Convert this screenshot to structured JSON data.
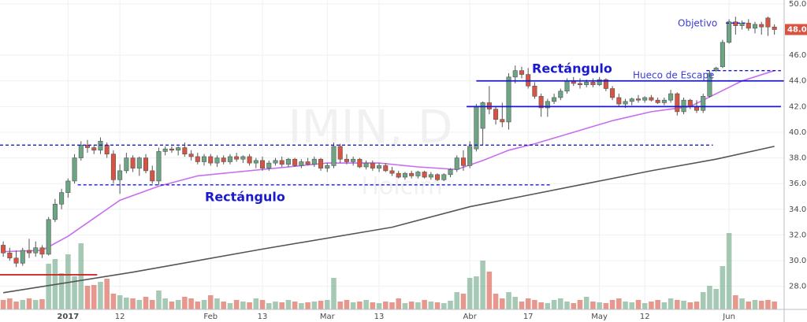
{
  "chart_data": {
    "type": "candlestick",
    "watermark": [
      "IMIN, D",
      "Holcim"
    ],
    "xlim": [
      -0.5,
      120.5
    ],
    "ylim": [
      26.2,
      50.3
    ],
    "yticks": [
      {
        "value": 28,
        "label": "28.00"
      },
      {
        "value": 30,
        "label": "30.00"
      },
      {
        "value": 32,
        "label": "32.00"
      },
      {
        "value": 34,
        "label": "34.00"
      },
      {
        "value": 36,
        "label": "36.00"
      },
      {
        "value": 38,
        "label": "38.00"
      },
      {
        "value": 40,
        "label": "40.00"
      },
      {
        "value": 42,
        "label": "42.00"
      },
      {
        "value": 44,
        "label": "44.00"
      },
      {
        "value": 46,
        "label": "46.00"
      },
      {
        "value": 50,
        "label": "50.00"
      }
    ],
    "xticks": [
      {
        "value": 10,
        "label": "2017"
      },
      {
        "value": 18,
        "label": "12"
      },
      {
        "value": 32,
        "label": "Feb"
      },
      {
        "value": 40,
        "label": "13"
      },
      {
        "value": 50,
        "label": "Mar"
      },
      {
        "value": 58,
        "label": "13"
      },
      {
        "value": 72,
        "label": "Abr"
      },
      {
        "value": 81,
        "label": "17"
      },
      {
        "value": 92,
        "label": "May"
      },
      {
        "value": 99,
        "label": "12"
      },
      {
        "value": 112,
        "label": "Jun"
      }
    ],
    "grid": true,
    "up_color": "#6ba583",
    "down_color": "#d75442",
    "last_price": {
      "value": 48.0,
      "label": "48.00"
    },
    "candles": [
      [
        31.2,
        31.5,
        30.3,
        30.6
      ],
      [
        30.6,
        31,
        30.0,
        30.2
      ],
      [
        30.2,
        30.8,
        29.5,
        29.8
      ],
      [
        29.8,
        31,
        29.6,
        30.8
      ],
      [
        30.8,
        31.7,
        30.2,
        30.6
      ],
      [
        30.6,
        31.5,
        30.3,
        31.0
      ],
      [
        31.0,
        31.2,
        30.2,
        30.5
      ],
      [
        30.5,
        33.4,
        30.4,
        33.2
      ],
      [
        33.2,
        34.8,
        33.0,
        34.4
      ],
      [
        34.4,
        35.6,
        34.0,
        35.3
      ],
      [
        35.3,
        36.4,
        34.9,
        36.2
      ],
      [
        36.2,
        38.3,
        36.0,
        38.0
      ],
      [
        38.0,
        39.3,
        37.8,
        39.0
      ],
      [
        39.0,
        39.4,
        38.4,
        38.8
      ],
      [
        38.8,
        39.0,
        38.3,
        38.6
      ],
      [
        38.6,
        39.6,
        38.3,
        39.3
      ],
      [
        39.0,
        39.2,
        38.0,
        38.3
      ],
      [
        38.3,
        38.6,
        36.0,
        36.3
      ],
      [
        36.3,
        37.5,
        35.2,
        37.0
      ],
      [
        37.0,
        38.4,
        36.8,
        38.0
      ],
      [
        38.0,
        38.2,
        36.9,
        37.2
      ],
      [
        37.2,
        38.1,
        36.6,
        38.0
      ],
      [
        38.0,
        38.3,
        36.8,
        37.0
      ],
      [
        37.0,
        37.4,
        36.0,
        36.2
      ],
      [
        36.2,
        38.8,
        35.9,
        38.5
      ],
      [
        38.5,
        38.9,
        38.2,
        38.7
      ],
      [
        38.7,
        38.9,
        38.4,
        38.6
      ],
      [
        38.6,
        38.9,
        38.2,
        38.8
      ],
      [
        38.8,
        39.2,
        38.1,
        38.3
      ],
      [
        38.3,
        38.6,
        37.8,
        38.1
      ],
      [
        38.1,
        38.4,
        37.5,
        37.7
      ],
      [
        37.7,
        38.3,
        37.4,
        38.1
      ],
      [
        38.1,
        38.3,
        37.4,
        37.6
      ],
      [
        37.6,
        38.2,
        37.3,
        38.0
      ],
      [
        38.0,
        38.2,
        37.5,
        37.7
      ],
      [
        37.7,
        38.3,
        37.5,
        38.1
      ],
      [
        38.1,
        38.4,
        37.7,
        37.9
      ],
      [
        37.9,
        38.2,
        37.6,
        38.1
      ],
      [
        38.1,
        38.3,
        37.4,
        37.6
      ],
      [
        37.6,
        38.0,
        37.2,
        37.8
      ],
      [
        37.8,
        38.1,
        37.0,
        37.2
      ],
      [
        37.2,
        37.8,
        37.0,
        37.6
      ],
      [
        37.6,
        38.0,
        37.4,
        37.8
      ],
      [
        37.8,
        38.1,
        37.3,
        37.5
      ],
      [
        37.5,
        38.0,
        37.3,
        37.9
      ],
      [
        37.9,
        38.0,
        37.3,
        37.4
      ],
      [
        37.4,
        37.9,
        37.2,
        37.7
      ],
      [
        37.7,
        38.0,
        37.4,
        37.5
      ],
      [
        37.5,
        38.1,
        37.3,
        37.9
      ],
      [
        37.9,
        38.0,
        37.0,
        37.2
      ],
      [
        37.2,
        37.6,
        36.9,
        37.4
      ],
      [
        37.4,
        39.2,
        37.2,
        38.9
      ],
      [
        38.9,
        39.1,
        37.6,
        37.9
      ],
      [
        37.9,
        38.3,
        37.5,
        37.7
      ],
      [
        37.7,
        38.1,
        37.4,
        37.9
      ],
      [
        37.9,
        38.0,
        37.2,
        37.3
      ],
      [
        37.3,
        37.8,
        37.1,
        37.6
      ],
      [
        37.6,
        37.8,
        37.0,
        37.2
      ],
      [
        37.2,
        37.6,
        36.9,
        37.4
      ],
      [
        37.4,
        37.6,
        36.9,
        37.0
      ],
      [
        37.0,
        37.3,
        36.6,
        36.8
      ],
      [
        36.8,
        37.0,
        36.4,
        36.5
      ],
      [
        36.5,
        36.9,
        36.3,
        36.8
      ],
      [
        36.8,
        37.0,
        36.4,
        36.6
      ],
      [
        36.6,
        37.0,
        36.4,
        36.9
      ],
      [
        36.9,
        37.0,
        36.4,
        36.5
      ],
      [
        36.5,
        36.9,
        36.3,
        36.7
      ],
      [
        36.7,
        36.8,
        36.2,
        36.3
      ],
      [
        36.3,
        36.8,
        36.2,
        36.7
      ],
      [
        36.7,
        37.2,
        36.5,
        37.1
      ],
      [
        37.1,
        38.2,
        36.9,
        38.0
      ],
      [
        38.0,
        38.6,
        37.0,
        37.4
      ],
      [
        37.4,
        39.3,
        37.2,
        38.9
      ],
      [
        38.7,
        42.2,
        38.5,
        42.0
      ],
      [
        40.3,
        42.4,
        39.0,
        42.3
      ],
      [
        42.3,
        43.6,
        41.4,
        41.8
      ],
      [
        41.8,
        42.0,
        40.6,
        41.0
      ],
      [
        41.0,
        42.3,
        40.4,
        40.8
      ],
      [
        40.8,
        44.6,
        40.2,
        44.3
      ],
      [
        44.3,
        45.2,
        43.8,
        44.8
      ],
      [
        44.8,
        45.1,
        44.2,
        44.5
      ],
      [
        44.5,
        45.0,
        43.4,
        43.6
      ],
      [
        43.6,
        43.9,
        42.6,
        42.8
      ],
      [
        42.8,
        43.0,
        41.2,
        41.9
      ],
      [
        41.9,
        42.6,
        41.2,
        42.4
      ],
      [
        42.4,
        43.0,
        42.2,
        42.7
      ],
      [
        42.7,
        43.4,
        42.5,
        43.2
      ],
      [
        43.2,
        44.2,
        43.0,
        44.0
      ],
      [
        44.0,
        44.3,
        43.6,
        43.8
      ],
      [
        43.8,
        44.2,
        43.4,
        43.7
      ],
      [
        43.7,
        44.1,
        43.5,
        43.9
      ],
      [
        43.9,
        44.2,
        43.5,
        43.7
      ],
      [
        43.7,
        44.3,
        43.6,
        44.1
      ],
      [
        44.1,
        44.2,
        43.2,
        43.4
      ],
      [
        43.4,
        43.6,
        42.5,
        42.7
      ],
      [
        42.7,
        43.0,
        42.0,
        42.2
      ],
      [
        42.2,
        42.6,
        41.9,
        42.4
      ],
      [
        42.4,
        42.7,
        42.1,
        42.6
      ],
      [
        42.6,
        42.9,
        42.3,
        42.5
      ],
      [
        42.5,
        42.8,
        42.3,
        42.7
      ],
      [
        42.7,
        42.9,
        42.4,
        42.5
      ],
      [
        42.5,
        42.7,
        42.2,
        42.3
      ],
      [
        42.3,
        42.7,
        42.1,
        42.5
      ],
      [
        42.5,
        43.3,
        42.3,
        43.0
      ],
      [
        43.0,
        43.1,
        41.3,
        41.6
      ],
      [
        41.6,
        42.7,
        41.4,
        42.5
      ],
      [
        42.5,
        42.6,
        41.8,
        42.0
      ],
      [
        42.0,
        42.5,
        41.5,
        41.7
      ],
      [
        41.7,
        43.0,
        41.5,
        42.8
      ],
      [
        42.8,
        44.8,
        42.7,
        44.6
      ],
      [
        44.8,
        45.1,
        44.7,
        45.0
      ],
      [
        45.1,
        47.2,
        45.0,
        47.0
      ],
      [
        47.0,
        48.8,
        46.9,
        48.6
      ],
      [
        48.6,
        49.0,
        47.6,
        48.3
      ],
      [
        48.3,
        48.7,
        48.0,
        48.5
      ],
      [
        48.5,
        48.8,
        47.9,
        48.1
      ],
      [
        48.1,
        48.6,
        47.7,
        48.4
      ],
      [
        48.4,
        48.6,
        47.6,
        48.2
      ],
      [
        48.9,
        49.0,
        47.5,
        48.2
      ],
      [
        48.2,
        48.4,
        47.6,
        48.0
      ]
    ],
    "vlim": [
      0,
      120
    ],
    "volume": [
      12,
      14,
      10,
      12,
      14,
      12,
      13,
      58,
      64,
      46,
      70,
      42,
      84,
      30,
      31,
      35,
      39,
      20,
      18,
      15,
      14,
      12,
      16,
      12,
      24,
      14,
      10,
      12,
      16,
      14,
      10,
      12,
      18,
      14,
      10,
      8,
      12,
      10,
      9,
      14,
      12,
      8,
      10,
      9,
      12,
      10,
      8,
      9,
      10,
      11,
      12,
      40,
      10,
      12,
      9,
      10,
      12,
      9,
      8,
      10,
      9,
      14,
      8,
      10,
      9,
      12,
      10,
      9,
      8,
      11,
      22,
      20,
      40,
      42,
      62,
      48,
      20,
      14,
      22,
      16,
      10,
      14,
      12,
      9,
      8,
      12,
      14,
      10,
      8,
      12,
      16,
      10,
      9,
      8,
      12,
      14,
      10,
      9,
      12,
      8,
      10,
      12,
      9,
      14,
      12,
      11,
      9,
      10,
      22,
      30,
      26,
      55,
      97,
      18,
      14,
      10,
      12,
      11,
      12,
      10
    ],
    "series": [
      {
        "color": "#c86cf0",
        "x": [
          0,
          6,
          10,
          18,
          24,
          30,
          40,
          50,
          58,
          64,
          70,
          74,
          78,
          82,
          88,
          94,
          100,
          106,
          110,
          114,
          119
        ],
        "values": [
          30.7,
          30.8,
          31.9,
          34.7,
          35.8,
          36.6,
          37.1,
          37.6,
          37.6,
          37.3,
          37.1,
          37.8,
          38.6,
          39.1,
          40.0,
          40.9,
          41.6,
          42.0,
          43.0,
          44.0,
          44.8
        ]
      },
      {
        "color": "#555555",
        "x": [
          0,
          20,
          40,
          60,
          72,
          80,
          90,
          100,
          110,
          119
        ],
        "values": [
          27.5,
          29.1,
          30.9,
          32.6,
          34.2,
          35.0,
          36.0,
          37.0,
          37.9,
          38.9
        ]
      }
    ],
    "levels": [
      {
        "value": 39.0,
        "from": -0.5,
        "to": 109.5,
        "color": "#1a1acc",
        "dashed": true
      },
      {
        "value": 35.9,
        "from": 11.5,
        "to": 84.5,
        "color": "#1a1acc",
        "dashed": true
      },
      {
        "value": 44.0,
        "from": 73,
        "to": 120.5,
        "color": "#1a1acc",
        "dashed": false
      },
      {
        "value": 42.0,
        "from": 71.5,
        "to": 120,
        "color": "#1a1acc",
        "dashed": false
      },
      {
        "value": 44.8,
        "from": 108.5,
        "to": 120,
        "color": "#1a1acc",
        "dashed": true
      },
      {
        "value": 48.5,
        "from": 111.5,
        "to": 114.5,
        "color": "#1a1acc",
        "dashed": true
      },
      {
        "value": 28.9,
        "from": -0.5,
        "to": 14.5,
        "color": "#cc1a1a",
        "dashed": false
      }
    ],
    "annotations": [
      "Objetivo",
      "Rectángulo",
      "Hueco de Escape",
      "Rectángulo"
    ]
  }
}
